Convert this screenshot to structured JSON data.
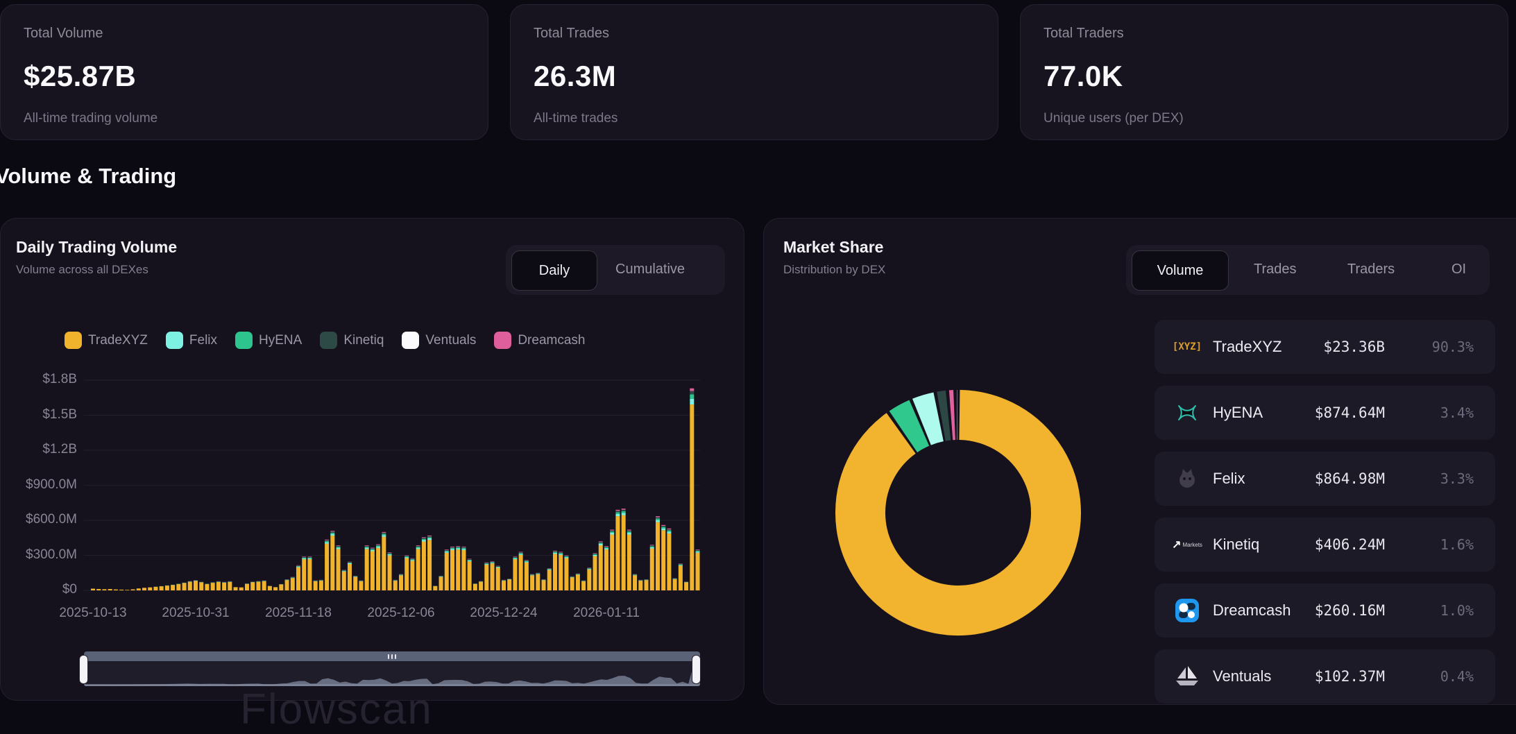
{
  "stats": [
    {
      "label": "Total Volume",
      "value": "$25.87B",
      "sub": "All-time trading volume"
    },
    {
      "label": "Total Trades",
      "value": "26.3M",
      "sub": "All-time trades"
    },
    {
      "label": "Total Traders",
      "value": "77.0K",
      "sub": "Unique users (per DEX)"
    }
  ],
  "section_title": "Volume & Trading",
  "volume_panel": {
    "title": "Daily Trading Volume",
    "subtitle": "Volume across all DEXes",
    "toggle": {
      "options": [
        "Daily",
        "Cumulative"
      ],
      "active": "Daily"
    },
    "watermark": "Flowscan"
  },
  "market_panel": {
    "title": "Market Share",
    "subtitle": "Distribution by DEX",
    "tabs": [
      "Volume",
      "Trades",
      "Traders",
      "OI"
    ],
    "active_tab": "Volume",
    "rows": [
      {
        "name": "TradeXYZ",
        "value": "$23.36B",
        "share": "90.3%",
        "icon": "tradexyz-logo"
      },
      {
        "name": "HyENA",
        "value": "$874.64M",
        "share": "3.4%",
        "icon": "hyena-logo"
      },
      {
        "name": "Felix",
        "value": "$864.98M",
        "share": "3.3%",
        "icon": "felix-logo"
      },
      {
        "name": "Kinetiq",
        "value": "$406.24M",
        "share": "1.6%",
        "icon": "kinetiq-logo"
      },
      {
        "name": "Dreamcash",
        "value": "$260.16M",
        "share": "1.0%",
        "icon": "dreamcash-logo"
      },
      {
        "name": "Ventuals",
        "value": "$102.37M",
        "share": "0.4%",
        "icon": "ventuals-logo"
      }
    ]
  },
  "legend": [
    {
      "label": "TradeXYZ",
      "color": "#f0b32b"
    },
    {
      "label": "Felix",
      "color": "#7df2e3"
    },
    {
      "label": "HyENA",
      "color": "#2ec48d"
    },
    {
      "label": "Kinetiq",
      "color": "#2e4a47"
    },
    {
      "label": "Ventuals",
      "color": "#fbfbfd"
    },
    {
      "label": "Dreamcash",
      "color": "#df5f9d"
    }
  ],
  "colors": {
    "accent_yellow": "#f2b32e",
    "donut": [
      "#f2b32e",
      "#31c88e",
      "#aefbed",
      "#2c4744",
      "#e0619e",
      "#f2f0f5"
    ],
    "bar_stack": [
      "#f0b32b",
      "#7df2e3",
      "#2ec48d",
      "#2e4a47",
      "#fbfbfd",
      "#df5f9d"
    ],
    "gridline": "#221e2b",
    "brush_rail": "#5a6277",
    "brush_area": "#767d92",
    "dreamcash_blue": "#1e98ef"
  },
  "chart_data": [
    {
      "type": "bar",
      "title": "Daily Trading Volume",
      "stacked": true,
      "unit": "USD millions per day",
      "x_start_date": "2025-10-13",
      "x_tick_labels": [
        "2025-10-13",
        "2025-10-31",
        "2025-11-18",
        "2025-12-06",
        "2025-12-24",
        "2026-01-11"
      ],
      "y_tick_labels": [
        "$0",
        "$300.0M",
        "$600.0M",
        "$900.0M",
        "$1.2B",
        "$1.5B",
        "$1.8B"
      ],
      "ylim": [
        0,
        1800
      ],
      "grid": true,
      "legend_position": "top",
      "series_names": [
        "TradeXYZ",
        "Felix",
        "HyENA",
        "Kinetiq",
        "Ventuals",
        "Dreamcash"
      ],
      "stack_fractions": [
        0.92,
        0.028,
        0.022,
        0.017,
        0.0,
        0.013
      ],
      "daily_totals_musd": [
        16,
        13,
        11,
        13,
        9,
        7,
        5,
        10,
        18,
        24,
        28,
        33,
        38,
        44,
        50,
        58,
        68,
        80,
        88,
        74,
        58,
        70,
        78,
        72,
        78,
        30,
        28,
        60,
        75,
        80,
        85,
        40,
        30,
        55,
        95,
        115,
        215,
        290,
        290,
        85,
        90,
        435,
        510,
        385,
        175,
        245,
        125,
        85,
        385,
        365,
        395,
        500,
        325,
        90,
        140,
        300,
        275,
        385,
        455,
        470,
        40,
        125,
        350,
        375,
        380,
        375,
        270,
        60,
        80,
        240,
        250,
        210,
        90,
        100,
        290,
        330,
        260,
        140,
        150,
        95,
        190,
        340,
        330,
        300,
        120,
        145,
        85,
        195,
        320,
        420,
        380,
        520,
        690,
        700,
        520,
        140,
        90,
        95,
        390,
        635,
        560,
        530,
        105,
        230,
        75,
        1730,
        350
      ]
    },
    {
      "type": "pie",
      "title": "Market Share (Volume)",
      "subtitle": "Distribution by DEX",
      "donut": true,
      "labels": [
        "TradeXYZ",
        "HyENA",
        "Felix",
        "Kinetiq",
        "Dreamcash",
        "Ventuals"
      ],
      "values_pct": [
        90.3,
        3.4,
        3.3,
        1.6,
        1.0,
        0.4
      ],
      "values_usd": [
        "$23.36B",
        "$874.64M",
        "$864.98M",
        "$406.24M",
        "$260.16M",
        "$102.37M"
      ]
    }
  ]
}
